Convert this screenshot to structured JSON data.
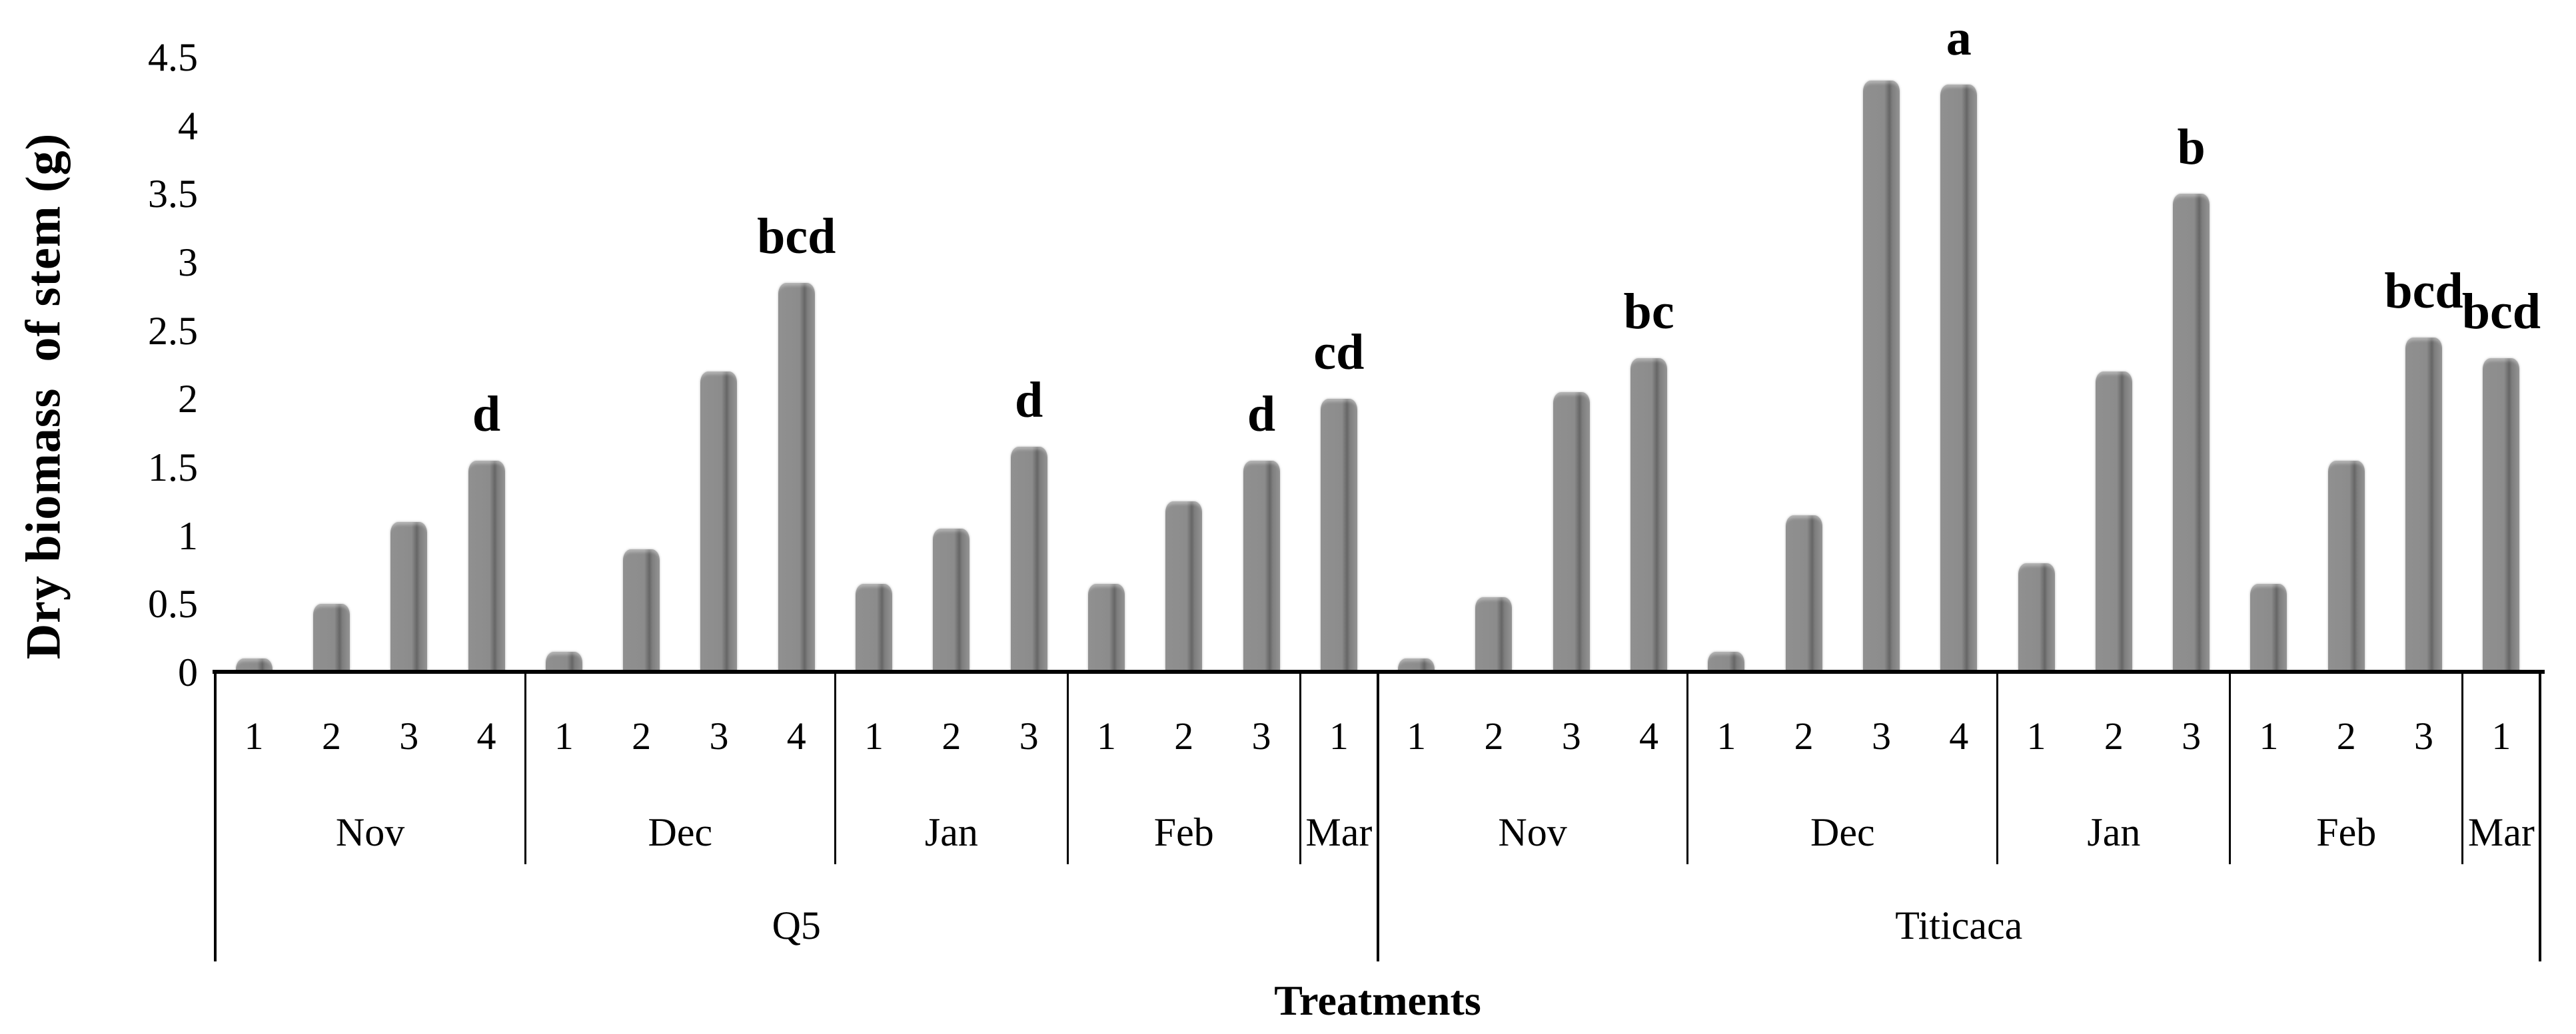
{
  "chart_data": {
    "type": "bar",
    "title": "",
    "ylabel": "Dry biomass  of stem (g)",
    "xlabel": "Treatments",
    "ylim": [
      0,
      4.5
    ],
    "ytick_step": 0.5,
    "grid": false,
    "legend": null,
    "bar_color": "#8c8c8c",
    "bar_edge_color": "#666666",
    "axis_color": "#000000",
    "sig_letter_color": "#000000",
    "yticks": [
      {
        "label": "0",
        "value": 0
      },
      {
        "label": "0.5",
        "value": 0.5
      },
      {
        "label": "1",
        "value": 1
      },
      {
        "label": "1.5",
        "value": 1.5
      },
      {
        "label": "2",
        "value": 2
      },
      {
        "label": "2.5",
        "value": 2.5
      },
      {
        "label": "3",
        "value": 3
      },
      {
        "label": "3.5",
        "value": 3.5
      },
      {
        "label": "4",
        "value": 4
      },
      {
        "label": "4.5",
        "value": 4.5
      }
    ],
    "groups": [
      {
        "label": "Q5",
        "months": [
          {
            "label": "Nov",
            "bars": [
              {
                "treatment": "1",
                "value": 0.1,
                "letter": ""
              },
              {
                "treatment": "2",
                "value": 0.5,
                "letter": ""
              },
              {
                "treatment": "3",
                "value": 1.1,
                "letter": ""
              },
              {
                "treatment": "4",
                "value": 1.55,
                "letter": "d"
              }
            ]
          },
          {
            "label": "Dec",
            "bars": [
              {
                "treatment": "1",
                "value": 0.15,
                "letter": ""
              },
              {
                "treatment": "2",
                "value": 0.9,
                "letter": ""
              },
              {
                "treatment": "3",
                "value": 2.2,
                "letter": ""
              },
              {
                "treatment": "4",
                "value": 2.85,
                "letter": "bcd"
              }
            ]
          },
          {
            "label": "Jan",
            "bars": [
              {
                "treatment": "1",
                "value": 0.65,
                "letter": ""
              },
              {
                "treatment": "2",
                "value": 1.05,
                "letter": ""
              },
              {
                "treatment": "3",
                "value": 1.65,
                "letter": "d"
              }
            ]
          },
          {
            "label": "Feb",
            "bars": [
              {
                "treatment": "1",
                "value": 0.65,
                "letter": ""
              },
              {
                "treatment": "2",
                "value": 1.25,
                "letter": ""
              },
              {
                "treatment": "3",
                "value": 1.55,
                "letter": "d"
              }
            ]
          },
          {
            "label": "Mar",
            "bars": [
              {
                "treatment": "1",
                "value": 2.0,
                "letter": "cd"
              }
            ]
          }
        ]
      },
      {
        "label": "Titicaca",
        "months": [
          {
            "label": "Nov",
            "bars": [
              {
                "treatment": "1",
                "value": 0.1,
                "letter": ""
              },
              {
                "treatment": "2",
                "value": 0.55,
                "letter": ""
              },
              {
                "treatment": "3",
                "value": 2.05,
                "letter": ""
              },
              {
                "treatment": "4",
                "value": 2.3,
                "letter": "bc"
              }
            ]
          },
          {
            "label": "Dec",
            "bars": [
              {
                "treatment": "1",
                "value": 0.15,
                "letter": ""
              },
              {
                "treatment": "2",
                "value": 1.15,
                "letter": ""
              },
              {
                "treatment": "3",
                "value": 4.33,
                "letter": ""
              },
              {
                "treatment": "4",
                "value": 4.3,
                "letter": "a"
              }
            ]
          },
          {
            "label": "Jan",
            "bars": [
              {
                "treatment": "1",
                "value": 0.8,
                "letter": ""
              },
              {
                "treatment": "2",
                "value": 2.2,
                "letter": ""
              },
              {
                "treatment": "3",
                "value": 3.5,
                "letter": "b"
              }
            ]
          },
          {
            "label": "Feb",
            "bars": [
              {
                "treatment": "1",
                "value": 0.65,
                "letter": ""
              },
              {
                "treatment": "2",
                "value": 1.55,
                "letter": ""
              },
              {
                "treatment": "3",
                "value": 2.45,
                "letter": "bcd"
              }
            ]
          },
          {
            "label": "Mar",
            "bars": [
              {
                "treatment": "1",
                "value": 2.3,
                "letter": "bcd"
              }
            ]
          }
        ]
      }
    ]
  }
}
